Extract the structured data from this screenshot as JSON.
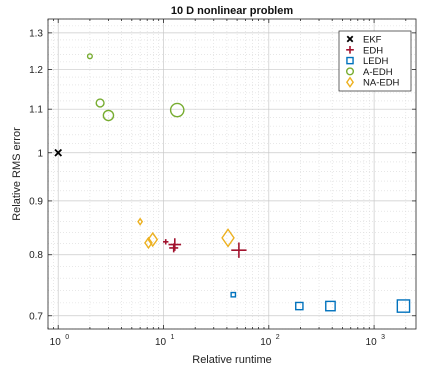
{
  "chart_data": {
    "type": "scatter",
    "title": "10 D nonlinear problem",
    "xlabel": "Relative runtime",
    "ylabel": "Relative RMS error",
    "x_scale": "log",
    "y_scale": "log",
    "xlim": [
      0.8,
      2500
    ],
    "ylim": [
      0.68,
      1.34
    ],
    "grid": "on (major and minor)",
    "legend_position": "top-right",
    "x_ticks": [
      {
        "value": 1,
        "base": "10",
        "exp": "0"
      },
      {
        "value": 10,
        "base": "10",
        "exp": "1"
      },
      {
        "value": 100,
        "base": "10",
        "exp": "2"
      },
      {
        "value": 1000,
        "base": "10",
        "exp": "3"
      }
    ],
    "y_ticks": [
      {
        "value": 0.7,
        "label": "0.7"
      },
      {
        "value": 0.8,
        "label": "0.8"
      },
      {
        "value": 0.9,
        "label": "0.9"
      },
      {
        "value": 1.0,
        "label": "1"
      },
      {
        "value": 1.1,
        "label": "1.1"
      },
      {
        "value": 1.2,
        "label": "1.2"
      },
      {
        "value": 1.3,
        "label": "1.3"
      }
    ],
    "series": [
      {
        "name": "EKF",
        "marker": "x",
        "color": "#000000",
        "points": [
          {
            "x": 1.0,
            "y": 1.0,
            "size": 1
          }
        ]
      },
      {
        "name": "EDH",
        "marker": "+",
        "color": "#A2142F",
        "points": [
          {
            "x": 10.5,
            "y": 0.823,
            "size": 0.6
          },
          {
            "x": 12.5,
            "y": 0.812,
            "size": 1.0
          },
          {
            "x": 12.8,
            "y": 0.818,
            "size": 1.4
          },
          {
            "x": 52,
            "y": 0.808,
            "size": 1.7
          }
        ]
      },
      {
        "name": "LEDH",
        "marker": "square",
        "color": "#0072BD",
        "points": [
          {
            "x": 46,
            "y": 0.733,
            "size": 0.6
          },
          {
            "x": 195,
            "y": 0.715,
            "size": 1.0
          },
          {
            "x": 385,
            "y": 0.715,
            "size": 1.3
          },
          {
            "x": 1900,
            "y": 0.715,
            "size": 1.7
          }
        ]
      },
      {
        "name": "A-EDH",
        "marker": "circle",
        "color": "#77AC30",
        "points": [
          {
            "x": 2.0,
            "y": 1.235,
            "size": 0.6
          },
          {
            "x": 2.5,
            "y": 1.115,
            "size": 1.0
          },
          {
            "x": 3.0,
            "y": 1.085,
            "size": 1.3
          },
          {
            "x": 13.5,
            "y": 1.098,
            "size": 1.7
          }
        ]
      },
      {
        "name": "NA-EDH",
        "marker": "diamond",
        "color": "#EDB120",
        "points": [
          {
            "x": 6.0,
            "y": 0.86,
            "size": 0.6
          },
          {
            "x": 7.2,
            "y": 0.821,
            "size": 1.0
          },
          {
            "x": 7.9,
            "y": 0.827,
            "size": 1.3
          },
          {
            "x": 41,
            "y": 0.83,
            "size": 1.7
          }
        ]
      }
    ]
  }
}
